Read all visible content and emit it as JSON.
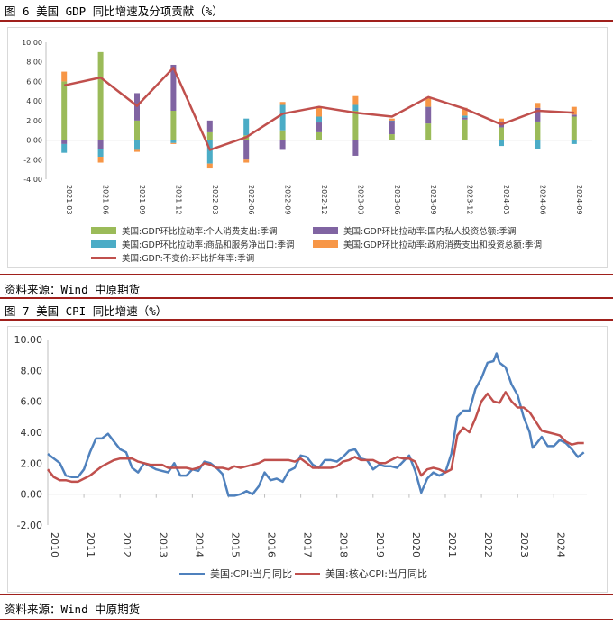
{
  "figures": [
    {
      "title": "图 6 美国 GDP 同比增速及分项贡献（%）",
      "source": "资料来源：Wind 中原期货"
    },
    {
      "title": "图 7 美国 CPI 同比增速（%）",
      "source": "资料来源：Wind 中原期货"
    }
  ],
  "colors": {
    "consumption": "#9bbb59",
    "private_invest": "#8064a2",
    "net_export": "#4bacc6",
    "government": "#f79646",
    "gdp_line": "#c0504d",
    "cpi_line": "#4f81bd",
    "core_cpi_line": "#c0504d",
    "rule": "#a0201c"
  },
  "chart_data": [
    {
      "type": "bar",
      "stacked": true,
      "categories": [
        "2021-03",
        "2021-06",
        "2021-09",
        "2021-12",
        "2022-03",
        "2022-06",
        "2022-09",
        "2022-12",
        "2023-03",
        "2023-06",
        "2023-09",
        "2023-12",
        "2024-03",
        "2024-06",
        "2024-09"
      ],
      "series": [
        {
          "name": "美国:GDP环比拉动率:个人消费支出:季调",
          "kind": "bar",
          "values": [
            6.0,
            9.0,
            2.0,
            3.0,
            0.8,
            0.5,
            1.0,
            0.8,
            3.0,
            0.6,
            1.7,
            2.1,
            1.3,
            1.9,
            2.4
          ]
        },
        {
          "name": "美国:GDP环比拉动率:国内私人投资总额:季调",
          "kind": "bar",
          "values": [
            -0.4,
            -0.9,
            2.8,
            4.7,
            1.2,
            -2.0,
            -1.0,
            1.0,
            -1.6,
            1.4,
            1.7,
            0.2,
            0.5,
            1.4,
            0.2
          ]
        },
        {
          "name": "美国:GDP环比拉动率:商品和服务净出口:季调",
          "kind": "bar",
          "values": [
            -0.9,
            -0.8,
            -1.0,
            -0.3,
            -2.4,
            1.7,
            2.6,
            0.6,
            0.6,
            0.0,
            0.0,
            0.2,
            -0.6,
            -0.9,
            -0.4
          ]
        },
        {
          "name": "美国:GDP环比拉动率:政府消费支出和投资总额:季调",
          "kind": "bar",
          "values": [
            1.0,
            -0.6,
            -0.2,
            -0.1,
            -0.5,
            -0.3,
            0.3,
            0.9,
            0.9,
            0.2,
            1.0,
            0.8,
            0.4,
            0.5,
            0.8
          ]
        },
        {
          "name": "美国:GDP:不变价:环比折年率:季调",
          "kind": "line",
          "values": [
            5.6,
            6.4,
            3.5,
            7.4,
            -1.0,
            0.3,
            2.7,
            3.4,
            2.8,
            2.4,
            4.4,
            3.2,
            1.6,
            3.0,
            2.8
          ]
        }
      ],
      "y_ticks": [
        "10.00",
        "8.00",
        "6.00",
        "4.00",
        "2.00",
        "0.00",
        "-2.00",
        "-4.00"
      ],
      "ylim": [
        -4,
        10
      ],
      "legend": "bottom",
      "grid": false
    },
    {
      "type": "line",
      "x_ticks": [
        "2010",
        "2011",
        "2012",
        "2013",
        "2014",
        "2015",
        "2016",
        "2017",
        "2018",
        "2019",
        "2020",
        "2021",
        "2022",
        "2023",
        "2024"
      ],
      "y_ticks": [
        "10.00",
        "8.00",
        "6.00",
        "4.00",
        "2.00",
        "0.00",
        "-2.00"
      ],
      "ylim": [
        -2,
        10
      ],
      "xlim": [
        "2010-01",
        "2024-12"
      ],
      "legend": "bottom",
      "grid": false,
      "series": [
        {
          "name": "美国:CPI:当月同比",
          "points": [
            [
              "2010-01",
              2.6
            ],
            [
              "2010-03",
              2.3
            ],
            [
              "2010-05",
              2.0
            ],
            [
              "2010-07",
              1.2
            ],
            [
              "2010-09",
              1.1
            ],
            [
              "2010-11",
              1.1
            ],
            [
              "2011-01",
              1.6
            ],
            [
              "2011-03",
              2.7
            ],
            [
              "2011-05",
              3.6
            ],
            [
              "2011-07",
              3.6
            ],
            [
              "2011-09",
              3.9
            ],
            [
              "2011-11",
              3.4
            ],
            [
              "2012-01",
              2.9
            ],
            [
              "2012-03",
              2.7
            ],
            [
              "2012-05",
              1.7
            ],
            [
              "2012-07",
              1.4
            ],
            [
              "2012-09",
              2.0
            ],
            [
              "2012-11",
              1.8
            ],
            [
              "2013-01",
              1.6
            ],
            [
              "2013-03",
              1.5
            ],
            [
              "2013-05",
              1.4
            ],
            [
              "2013-07",
              2.0
            ],
            [
              "2013-09",
              1.2
            ],
            [
              "2013-11",
              1.2
            ],
            [
              "2014-01",
              1.6
            ],
            [
              "2014-03",
              1.5
            ],
            [
              "2014-05",
              2.1
            ],
            [
              "2014-07",
              2.0
            ],
            [
              "2014-09",
              1.7
            ],
            [
              "2014-11",
              1.3
            ],
            [
              "2015-01",
              -0.1
            ],
            [
              "2015-03",
              -0.1
            ],
            [
              "2015-05",
              0.0
            ],
            [
              "2015-07",
              0.2
            ],
            [
              "2015-09",
              0.0
            ],
            [
              "2015-11",
              0.5
            ],
            [
              "2016-01",
              1.4
            ],
            [
              "2016-03",
              0.9
            ],
            [
              "2016-05",
              1.0
            ],
            [
              "2016-07",
              0.8
            ],
            [
              "2016-09",
              1.5
            ],
            [
              "2016-11",
              1.7
            ],
            [
              "2017-01",
              2.5
            ],
            [
              "2017-03",
              2.4
            ],
            [
              "2017-05",
              1.9
            ],
            [
              "2017-07",
              1.7
            ],
            [
              "2017-09",
              2.2
            ],
            [
              "2017-11",
              2.2
            ],
            [
              "2018-01",
              2.1
            ],
            [
              "2018-03",
              2.4
            ],
            [
              "2018-05",
              2.8
            ],
            [
              "2018-07",
              2.9
            ],
            [
              "2018-09",
              2.3
            ],
            [
              "2018-11",
              2.2
            ],
            [
              "2019-01",
              1.6
            ],
            [
              "2019-03",
              1.9
            ],
            [
              "2019-05",
              1.8
            ],
            [
              "2019-07",
              1.8
            ],
            [
              "2019-09",
              1.7
            ],
            [
              "2019-11",
              2.1
            ],
            [
              "2020-01",
              2.5
            ],
            [
              "2020-03",
              1.5
            ],
            [
              "2020-05",
              0.1
            ],
            [
              "2020-07",
              1.0
            ],
            [
              "2020-09",
              1.4
            ],
            [
              "2020-11",
              1.2
            ],
            [
              "2021-01",
              1.4
            ],
            [
              "2021-03",
              2.6
            ],
            [
              "2021-05",
              5.0
            ],
            [
              "2021-07",
              5.4
            ],
            [
              "2021-09",
              5.4
            ],
            [
              "2021-11",
              6.8
            ],
            [
              "2022-01",
              7.5
            ],
            [
              "2022-03",
              8.5
            ],
            [
              "2022-05",
              8.6
            ],
            [
              "2022-06",
              9.1
            ],
            [
              "2022-07",
              8.5
            ],
            [
              "2022-09",
              8.2
            ],
            [
              "2022-11",
              7.1
            ],
            [
              "2023-01",
              6.4
            ],
            [
              "2023-03",
              5.0
            ],
            [
              "2023-05",
              4.0
            ],
            [
              "2023-06",
              3.0
            ],
            [
              "2023-07",
              3.2
            ],
            [
              "2023-09",
              3.7
            ],
            [
              "2023-11",
              3.1
            ],
            [
              "2024-01",
              3.1
            ],
            [
              "2024-03",
              3.5
            ],
            [
              "2024-05",
              3.3
            ],
            [
              "2024-07",
              2.9
            ],
            [
              "2024-09",
              2.4
            ],
            [
              "2024-11",
              2.7
            ]
          ]
        },
        {
          "name": "美国:核心CPI:当月同比",
          "points": [
            [
              "2010-01",
              1.6
            ],
            [
              "2010-03",
              1.1
            ],
            [
              "2010-05",
              0.9
            ],
            [
              "2010-07",
              0.9
            ],
            [
              "2010-09",
              0.8
            ],
            [
              "2010-11",
              0.8
            ],
            [
              "2011-01",
              1.0
            ],
            [
              "2011-03",
              1.2
            ],
            [
              "2011-05",
              1.5
            ],
            [
              "2011-07",
              1.8
            ],
            [
              "2011-09",
              2.0
            ],
            [
              "2011-11",
              2.2
            ],
            [
              "2012-01",
              2.3
            ],
            [
              "2012-03",
              2.3
            ],
            [
              "2012-05",
              2.3
            ],
            [
              "2012-07",
              2.1
            ],
            [
              "2012-09",
              2.0
            ],
            [
              "2012-11",
              1.9
            ],
            [
              "2013-01",
              1.9
            ],
            [
              "2013-03",
              1.9
            ],
            [
              "2013-05",
              1.7
            ],
            [
              "2013-07",
              1.7
            ],
            [
              "2013-09",
              1.7
            ],
            [
              "2013-11",
              1.7
            ],
            [
              "2014-01",
              1.6
            ],
            [
              "2014-03",
              1.7
            ],
            [
              "2014-05",
              2.0
            ],
            [
              "2014-07",
              1.9
            ],
            [
              "2014-09",
              1.7
            ],
            [
              "2014-11",
              1.7
            ],
            [
              "2015-01",
              1.6
            ],
            [
              "2015-03",
              1.8
            ],
            [
              "2015-05",
              1.7
            ],
            [
              "2015-07",
              1.8
            ],
            [
              "2015-09",
              1.9
            ],
            [
              "2015-11",
              2.0
            ],
            [
              "2016-01",
              2.2
            ],
            [
              "2016-03",
              2.2
            ],
            [
              "2016-05",
              2.2
            ],
            [
              "2016-07",
              2.2
            ],
            [
              "2016-09",
              2.2
            ],
            [
              "2016-11",
              2.1
            ],
            [
              "2017-01",
              2.3
            ],
            [
              "2017-03",
              2.0
            ],
            [
              "2017-05",
              1.7
            ],
            [
              "2017-07",
              1.7
            ],
            [
              "2017-09",
              1.7
            ],
            [
              "2017-11",
              1.7
            ],
            [
              "2018-01",
              1.8
            ],
            [
              "2018-03",
              2.1
            ],
            [
              "2018-05",
              2.2
            ],
            [
              "2018-07",
              2.4
            ],
            [
              "2018-09",
              2.2
            ],
            [
              "2018-11",
              2.2
            ],
            [
              "2019-01",
              2.2
            ],
            [
              "2019-03",
              2.0
            ],
            [
              "2019-05",
              2.0
            ],
            [
              "2019-07",
              2.2
            ],
            [
              "2019-09",
              2.4
            ],
            [
              "2019-11",
              2.3
            ],
            [
              "2020-01",
              2.3
            ],
            [
              "2020-03",
              2.1
            ],
            [
              "2020-05",
              1.2
            ],
            [
              "2020-07",
              1.6
            ],
            [
              "2020-09",
              1.7
            ],
            [
              "2020-11",
              1.6
            ],
            [
              "2021-01",
              1.4
            ],
            [
              "2021-03",
              1.6
            ],
            [
              "2021-05",
              3.8
            ],
            [
              "2021-07",
              4.3
            ],
            [
              "2021-09",
              4.0
            ],
            [
              "2021-11",
              4.9
            ],
            [
              "2022-01",
              6.0
            ],
            [
              "2022-03",
              6.5
            ],
            [
              "2022-05",
              6.0
            ],
            [
              "2022-07",
              5.9
            ],
            [
              "2022-09",
              6.6
            ],
            [
              "2022-11",
              6.0
            ],
            [
              "2023-01",
              5.6
            ],
            [
              "2023-03",
              5.6
            ],
            [
              "2023-05",
              5.3
            ],
            [
              "2023-07",
              4.7
            ],
            [
              "2023-09",
              4.1
            ],
            [
              "2023-11",
              4.0
            ],
            [
              "2024-01",
              3.9
            ],
            [
              "2024-03",
              3.8
            ],
            [
              "2024-05",
              3.4
            ],
            [
              "2024-07",
              3.2
            ],
            [
              "2024-09",
              3.3
            ],
            [
              "2024-11",
              3.3
            ]
          ]
        }
      ]
    }
  ]
}
